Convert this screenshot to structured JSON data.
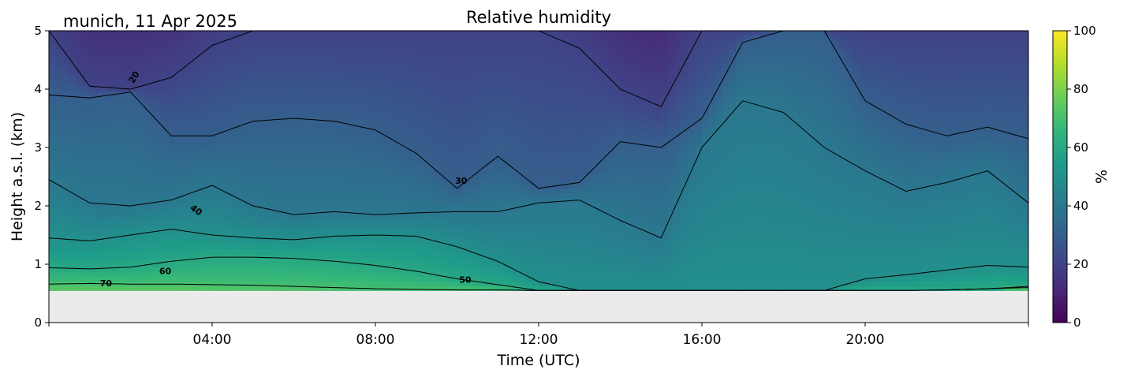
{
  "chart_data": {
    "type": "heatmap",
    "title": "Relative humidity",
    "subtitle": "munich, 11 Apr 2025",
    "xlabel": "Time (UTC)",
    "ylabel": "Height a.s.l. (km)",
    "xlim": [
      0,
      24
    ],
    "ylim": [
      0,
      5
    ],
    "x_ticks": [
      4,
      8,
      12,
      16,
      20
    ],
    "x_tick_labels": [
      "04:00",
      "08:00",
      "12:00",
      "16:00",
      "20:00"
    ],
    "y_ticks": [
      0,
      1,
      2,
      3,
      4,
      5
    ],
    "y_tick_labels": [
      "0",
      "1",
      "2",
      "3",
      "4",
      "5"
    ],
    "data_bottom_km": 0.55,
    "colorbar": {
      "label": "%",
      "range": [
        0,
        100
      ],
      "ticks": [
        0,
        20,
        40,
        60,
        80,
        100
      ],
      "tick_labels": [
        "0",
        "20",
        "40",
        "60",
        "80",
        "100"
      ],
      "colormap": [
        "#440154",
        "#482878",
        "#3e4989",
        "#31688e",
        "#26828e",
        "#1f9e89",
        "#35b779",
        "#6ece58",
        "#b5de2b",
        "#fde725"
      ]
    },
    "contour_levels": [
      20,
      30,
      40,
      50,
      60,
      70
    ],
    "contour_labels": [
      {
        "text": "20",
        "x": 2.1,
        "y": 4.2,
        "angle": -60
      },
      {
        "text": "30",
        "x": 10.1,
        "y": 2.42,
        "angle": 0
      },
      {
        "text": "40",
        "x": 3.6,
        "y": 1.92,
        "angle": 35
      },
      {
        "text": "50",
        "x": 10.2,
        "y": 0.72,
        "angle": 0
      },
      {
        "text": "60",
        "x": 2.85,
        "y": 0.87,
        "angle": 0
      },
      {
        "text": "70",
        "x": 1.4,
        "y": 0.66,
        "angle": 0
      }
    ],
    "profile_times": [
      0,
      1,
      2,
      3,
      4,
      5,
      6,
      7,
      8,
      9,
      10,
      11,
      12,
      13,
      14,
      15,
      16,
      17,
      18,
      19,
      20,
      21,
      22,
      23,
      24
    ],
    "contour_heights": {
      "70": [
        0.66,
        0.67,
        0.66,
        0.66,
        0.65,
        0.64,
        0.62,
        0.6,
        0.58,
        0.57,
        0.56,
        0.56,
        0.55,
        0.55,
        0.55,
        0.55,
        0.55,
        0.55,
        0.55,
        0.55,
        0.55,
        0.55,
        0.56,
        0.58,
        0.6
      ],
      "60": [
        0.94,
        0.92,
        0.95,
        1.05,
        1.12,
        1.12,
        1.1,
        1.05,
        0.98,
        0.88,
        0.75,
        0.65,
        0.55,
        0.55,
        0.55,
        0.55,
        0.55,
        0.55,
        0.55,
        0.55,
        0.55,
        0.55,
        0.56,
        0.58,
        0.62
      ],
      "50": [
        1.45,
        1.4,
        1.5,
        1.6,
        1.5,
        1.45,
        1.42,
        1.48,
        1.5,
        1.48,
        1.3,
        1.05,
        0.7,
        0.55,
        0.55,
        0.55,
        0.55,
        0.55,
        0.55,
        0.55,
        0.75,
        0.82,
        0.9,
        0.98,
        0.95
      ],
      "40": [
        2.45,
        2.05,
        2.0,
        2.1,
        2.35,
        2.0,
        1.85,
        1.9,
        1.85,
        1.88,
        1.9,
        1.9,
        2.05,
        2.1,
        1.75,
        1.45,
        3.0,
        3.8,
        3.6,
        3.0,
        2.6,
        2.25,
        2.4,
        2.6,
        2.05
      ],
      "30": [
        3.9,
        3.85,
        3.95,
        3.2,
        3.2,
        3.45,
        3.5,
        3.45,
        3.3,
        2.9,
        2.3,
        2.85,
        2.3,
        2.4,
        3.1,
        3.0,
        3.5,
        4.8,
        5.0,
        5.0,
        3.8,
        3.4,
        3.2,
        3.35,
        3.15
      ],
      "20": [
        5.0,
        4.05,
        4.0,
        4.2,
        4.75,
        5.0,
        5.0,
        5.0,
        5.0,
        5.0,
        5.0,
        5.0,
        5.0,
        4.7,
        4.0,
        3.7,
        5.0,
        5.0,
        5.0,
        5.0,
        5.0,
        5.0,
        5.0,
        5.0,
        5.0
      ]
    }
  }
}
